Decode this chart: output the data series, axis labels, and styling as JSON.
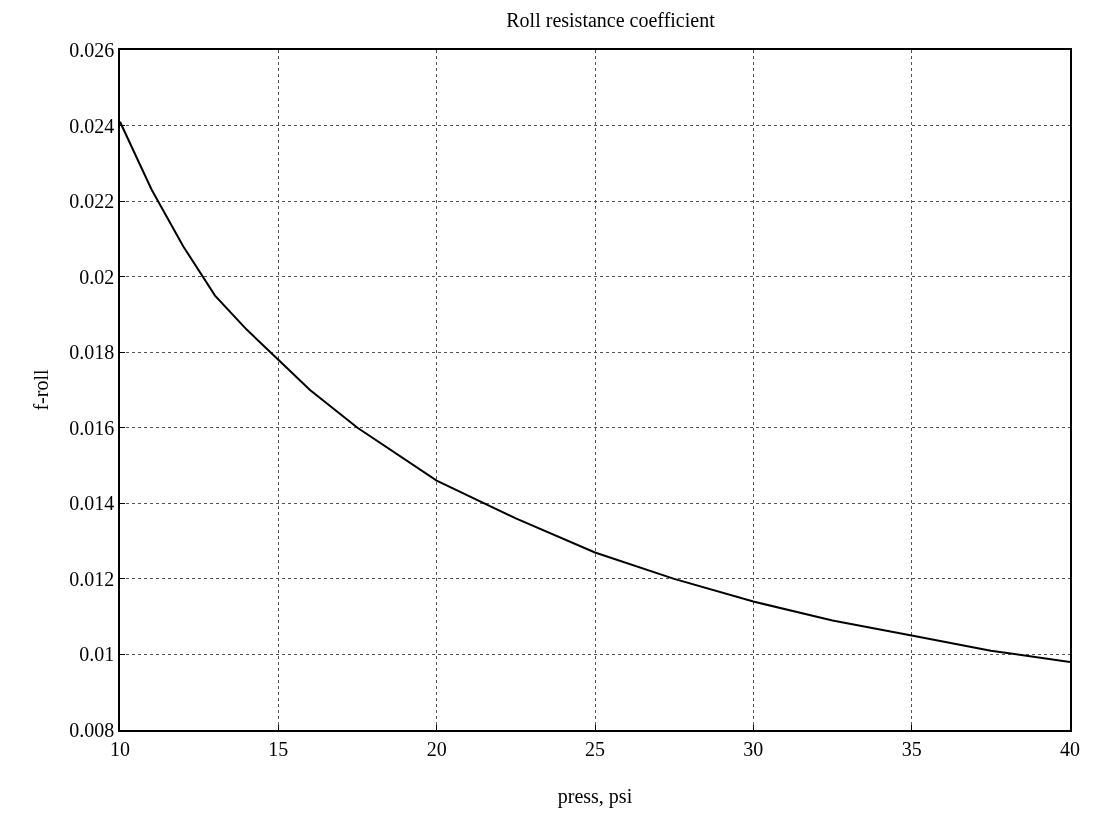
{
  "chart_data": {
    "type": "line",
    "title": "Roll resistance coefficient",
    "xlabel": "press, psi",
    "ylabel": "f-roll",
    "x": [
      10,
      11,
      12,
      13,
      14,
      15,
      16,
      17.5,
      20,
      22.5,
      25,
      27.5,
      30,
      32.5,
      35,
      37.5,
      40
    ],
    "series": [
      {
        "color": "#000000",
        "values": [
          0.0241,
          0.0223,
          0.0208,
          0.0195,
          0.0186,
          0.0178,
          0.017,
          0.016,
          0.0146,
          0.0136,
          0.0127,
          0.012,
          0.0114,
          0.0109,
          0.0105,
          0.0101,
          0.0098
        ]
      }
    ],
    "xlim": [
      10,
      40
    ],
    "xticks": [
      10,
      15,
      20,
      25,
      30,
      35,
      40
    ],
    "ylim": [
      0.008,
      0.026
    ],
    "yticks": [
      0.008,
      0.01,
      0.012,
      0.014,
      0.016,
      0.018,
      0.02,
      0.022,
      0.024,
      0.026
    ],
    "grid": true,
    "legend": false,
    "line_style": "solid"
  }
}
